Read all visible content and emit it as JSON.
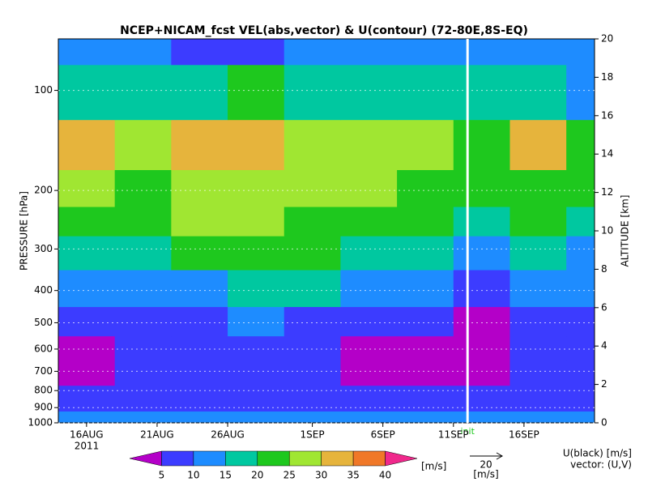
{
  "chart_data": {
    "type": "heatmap",
    "title": "NCEP+NICAM_fcst VEL(abs,vector) & U(contour)   (72-80E,8S-EQ)",
    "ylabel": "PRESSURE [hPa]",
    "y2label": "ALTITUDE [km]",
    "year_label": "2011",
    "init_label": "init",
    "init_date": "2011-09-12",
    "xlim": [
      "2011-08-14",
      "2011-09-21"
    ],
    "xticks": [
      {
        "value": "2011-08-16",
        "label": "16AUG"
      },
      {
        "value": "2011-08-21",
        "label": "21AUG"
      },
      {
        "value": "2011-08-26",
        "label": "26AUG"
      },
      {
        "value": "2011-09-01",
        "label": "1SEP"
      },
      {
        "value": "2011-09-06",
        "label": "6SEP"
      },
      {
        "value": "2011-09-11",
        "label": "11SEP"
      },
      {
        "value": "2011-09-16",
        "label": "16SEP"
      }
    ],
    "ylim": [
      1000,
      70
    ],
    "log_y": true,
    "yticks": [
      100,
      200,
      300,
      400,
      500,
      600,
      700,
      800,
      900,
      1000
    ],
    "y2lim": [
      0,
      20
    ],
    "y2ticks": [
      0,
      2,
      4,
      6,
      8,
      10,
      12,
      14,
      16,
      18,
      20
    ],
    "x": [
      "2011-08-16",
      "2011-08-20",
      "2011-08-24",
      "2011-08-28",
      "2011-09-01",
      "2011-09-05",
      "2011-09-09",
      "2011-09-13",
      "2011-09-17",
      "2011-09-21"
    ],
    "levels_hpa": [
      1000,
      850,
      700,
      600,
      500,
      400,
      300,
      250,
      200,
      150,
      100,
      70
    ],
    "values": [
      [
        12,
        13,
        12,
        11,
        12,
        13,
        12,
        11,
        12,
        12
      ],
      [
        8,
        9,
        8,
        7,
        8,
        8,
        7,
        6,
        8,
        9
      ],
      [
        4,
        6,
        7,
        8,
        7,
        4,
        4,
        3,
        7,
        8
      ],
      [
        4,
        7,
        8,
        9,
        8,
        4,
        3,
        3,
        6,
        8
      ],
      [
        6,
        8,
        9,
        10,
        9,
        8,
        6,
        4,
        7,
        8
      ],
      [
        10,
        12,
        14,
        16,
        15,
        13,
        11,
        5,
        12,
        11
      ],
      [
        16,
        18,
        22,
        22,
        20,
        18,
        16,
        14,
        17,
        14
      ],
      [
        20,
        20,
        26,
        26,
        24,
        23,
        22,
        19,
        20,
        17
      ],
      [
        26,
        22,
        28,
        28,
        27,
        25,
        24,
        21,
        23,
        20
      ],
      [
        30,
        25,
        33,
        34,
        26,
        27,
        28,
        20,
        31,
        22
      ],
      [
        17,
        16,
        18,
        20,
        18,
        18,
        18,
        17,
        16,
        14
      ],
      [
        12,
        10,
        8,
        9,
        10,
        10,
        12,
        11,
        12,
        14
      ]
    ],
    "colorbar": {
      "levels": [
        5,
        10,
        15,
        20,
        25,
        30,
        35,
        40
      ],
      "colors": [
        "#b400c8",
        "#3c3cff",
        "#1e8cff",
        "#00c8a0",
        "#1ec81e",
        "#a0e632",
        "#e6b43c",
        "#f07828",
        "#f0288c"
      ],
      "unit": "[m/s]"
    },
    "vector_key": {
      "value": 20,
      "unit": "[m/s]"
    },
    "legend_text": [
      "U(black) [m/s]",
      "vector: (U,V)"
    ]
  }
}
